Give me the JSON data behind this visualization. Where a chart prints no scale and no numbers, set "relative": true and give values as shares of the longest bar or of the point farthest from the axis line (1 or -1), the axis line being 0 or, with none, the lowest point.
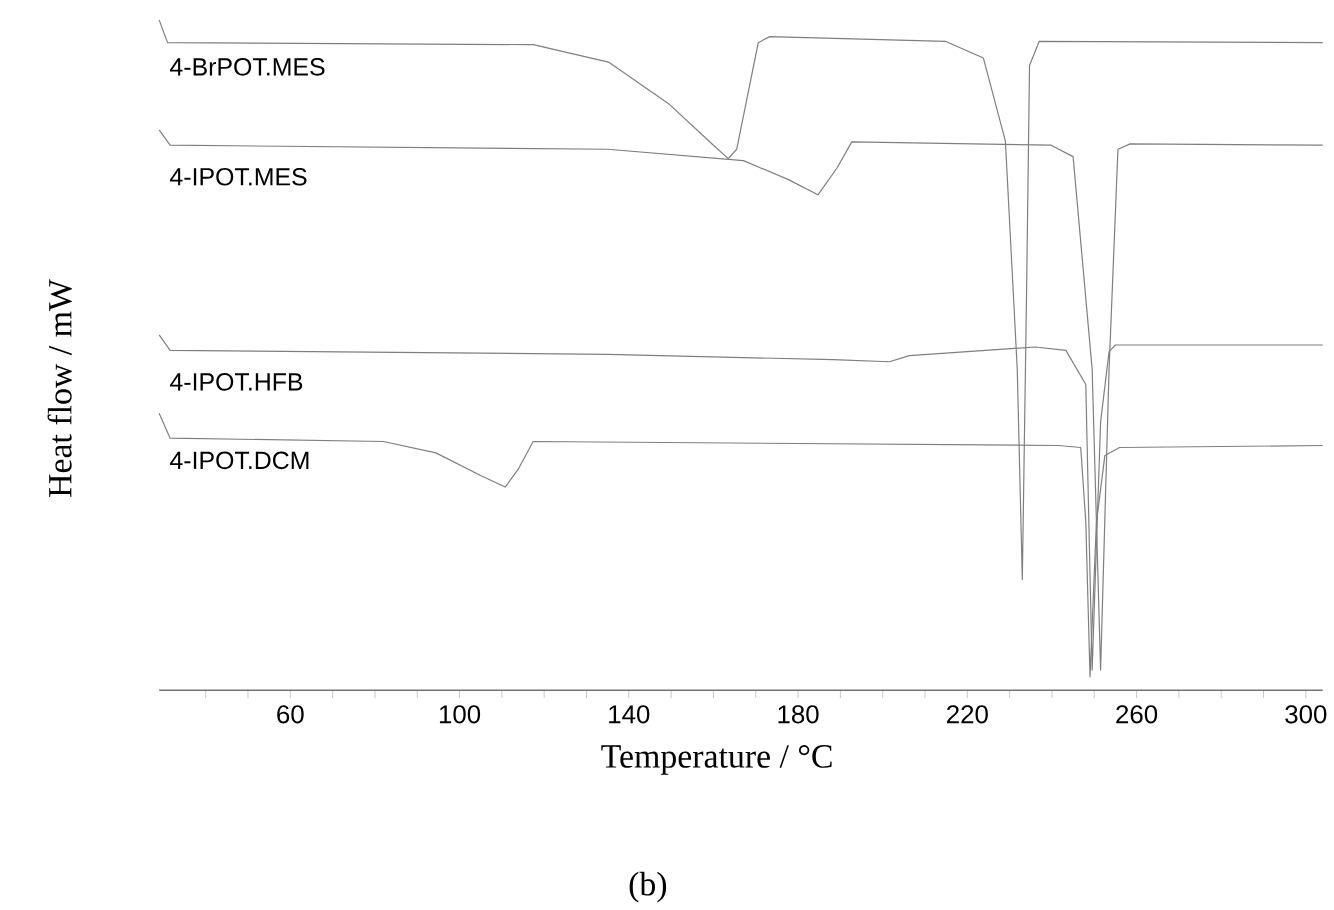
{
  "chart_data": {
    "type": "line",
    "relative": true,
    "xlabel": "Temperature / °C",
    "ylabel": "Heat flow / mW",
    "annotations": [
      "(b)"
    ],
    "xlim": [
      29,
      304
    ],
    "xticks": [
      {
        "value": 40,
        "label": null
      },
      {
        "value": 50,
        "label": null
      },
      60,
      {
        "value": 70,
        "label": null
      },
      {
        "value": 80,
        "label": null
      },
      {
        "value": 90,
        "label": null
      },
      100,
      {
        "value": 110,
        "label": null
      },
      {
        "value": 120,
        "label": null
      },
      {
        "value": 130,
        "label": null
      },
      140,
      {
        "value": 150,
        "label": null
      },
      {
        "value": 160,
        "label": null
      },
      {
        "value": 170,
        "label": null
      },
      180,
      {
        "value": 190,
        "label": null
      },
      {
        "value": 200,
        "label": null
      },
      {
        "value": 210,
        "label": null
      },
      220,
      {
        "value": 230,
        "label": null
      },
      {
        "value": 240,
        "label": null
      },
      {
        "value": 250,
        "label": null
      },
      260,
      {
        "value": 270,
        "label": null
      },
      {
        "value": 280,
        "label": null
      },
      {
        "value": 290,
        "label": null
      },
      300
    ],
    "series": [
      {
        "name": "4-BrPOT.MES",
        "color": "#7f7f7f",
        "x": [
          29,
          31,
          117.4,
          135.2,
          149.4,
          160,
          163.5,
          165.5,
          170.6,
          173.3,
          214.8,
          223.8,
          229,
          231.8,
          233,
          234,
          234.7,
          237,
          304
        ],
        "values": [
          1.0,
          0.966,
          0.963,
          0.937,
          0.875,
          0.813,
          0.793,
          0.807,
          0.966,
          0.975,
          0.968,
          0.943,
          0.819,
          0.479,
          0.165,
          0.592,
          0.932,
          0.968,
          0.966
        ]
      },
      {
        "name": "4-IPOT.MES",
        "color": "#7f7f7f",
        "x": [
          29,
          31.6,
          135,
          167.1,
          177.6,
          184.7,
          189.2,
          192.7,
          239.8,
          245,
          249.5,
          251.5,
          253.5,
          255.6,
          258.5,
          304
        ],
        "values": [
          0.836,
          0.813,
          0.807,
          0.79,
          0.762,
          0.739,
          0.779,
          0.818,
          0.813,
          0.796,
          0.479,
          0.03,
          0.479,
          0.807,
          0.815,
          0.813
        ]
      },
      {
        "name": "4-IPOT.HFB",
        "color": "#7f7f7f",
        "x": [
          29,
          31.6,
          135,
          188.3,
          201.6,
          206.3,
          236,
          243.3,
          248,
          249.5,
          251.5,
          253.5,
          255,
          304
        ],
        "values": [
          0.53,
          0.507,
          0.501,
          0.493,
          0.49,
          0.499,
          0.512,
          0.507,
          0.456,
          0.03,
          0.4,
          0.505,
          0.515,
          0.515
        ]
      },
      {
        "name": "4-IPOT.DCM",
        "color": "#7f7f7f",
        "x": [
          29,
          31.6,
          82,
          94.4,
          105.1,
          110.8,
          114,
          117.4,
          241.5,
          246.8,
          248,
          249,
          250.5,
          252.5,
          256,
          304
        ],
        "values": [
          0.413,
          0.376,
          0.371,
          0.354,
          0.32,
          0.303,
          0.331,
          0.371,
          0.365,
          0.362,
          0.251,
          0.02,
          0.25,
          0.35,
          0.362,
          0.365
        ]
      }
    ]
  }
}
